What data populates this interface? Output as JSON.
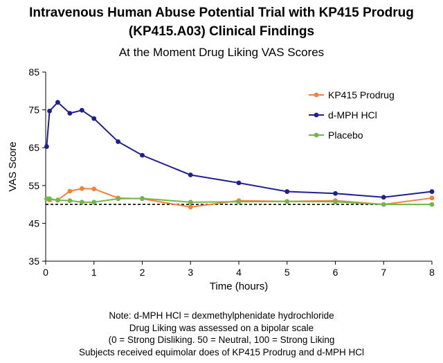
{
  "title_line1": "Intravenous Human Abuse Potential Trial with KP415 Prodrug",
  "title_line2": "(KP415.A03) Clinical Findings",
  "subtitle": "At the Moment Drug Liking VAS Scores",
  "notes": [
    "Note:  d-MPH HCl = dexmethylphenidate hydrochloride",
    "Drug Liking was assessed on a bipolar scale",
    "(0 = Strong Disliking. 50 = Neutral, 100 = Strong Liking",
    "Subjects received equimolar does of KP415 Prodrug and d-MPH HCl"
  ],
  "chart_data": {
    "type": "line",
    "xlabel": "Time (hours)",
    "ylabel": "VAS Score",
    "xlim": [
      0,
      8
    ],
    "ylim": [
      35,
      85
    ],
    "xticks": [
      0,
      1,
      2,
      3,
      4,
      5,
      6,
      7,
      8
    ],
    "yticks": [
      35,
      45,
      55,
      65,
      75,
      85
    ],
    "grid": false,
    "legend_position": "top-right",
    "reference_line": {
      "y": 50,
      "style": "dashed",
      "color": "#000000"
    },
    "series": [
      {
        "name": "KP415 Prodrug",
        "color": "#f5823b",
        "points": [
          [
            0.08,
            51.2
          ],
          [
            0.25,
            51.2
          ],
          [
            0.5,
            53.5
          ],
          [
            0.75,
            54.2
          ],
          [
            1,
            54.1
          ],
          [
            1.5,
            51.7
          ],
          [
            2,
            51.5
          ],
          [
            3,
            49.3
          ],
          [
            4,
            51.0
          ],
          [
            5,
            50.8
          ],
          [
            6,
            51.0
          ],
          [
            7,
            50.0
          ],
          [
            8,
            51.7
          ]
        ]
      },
      {
        "name": "d-MPH HCl",
        "color": "#1f1f8f",
        "points": [
          [
            0.02,
            65.3
          ],
          [
            0.08,
            74.7
          ],
          [
            0.25,
            77.0
          ],
          [
            0.5,
            74.1
          ],
          [
            0.75,
            74.9
          ],
          [
            1,
            72.7
          ],
          [
            1.5,
            66.6
          ],
          [
            2,
            63.0
          ],
          [
            3,
            57.8
          ],
          [
            4,
            55.7
          ],
          [
            5,
            53.4
          ],
          [
            6,
            52.9
          ],
          [
            7,
            51.9
          ],
          [
            8,
            53.4
          ]
        ]
      },
      {
        "name": "Placebo",
        "color": "#71b84b",
        "points": [
          [
            0.02,
            51.5
          ],
          [
            0.08,
            51.5
          ],
          [
            0.25,
            51.1
          ],
          [
            0.5,
            51.0
          ],
          [
            0.75,
            50.6
          ],
          [
            1,
            50.6
          ],
          [
            1.5,
            51.5
          ],
          [
            2,
            51.6
          ],
          [
            3,
            50.6
          ],
          [
            4,
            50.7
          ],
          [
            5,
            50.8
          ],
          [
            6,
            50.7
          ],
          [
            7,
            50.0
          ],
          [
            8,
            50.0
          ]
        ]
      }
    ]
  }
}
